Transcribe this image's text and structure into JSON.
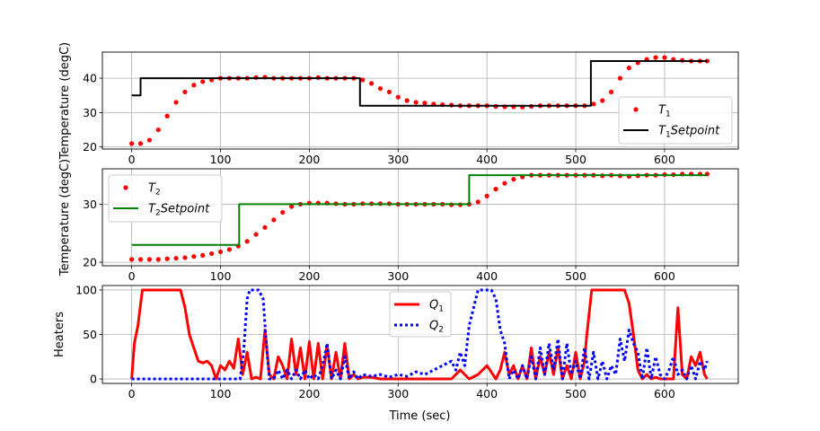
{
  "colors": {
    "red": "#ff0000",
    "black": "#000000",
    "green": "#008000",
    "blue": "#0000ff",
    "grid": "#b0b0b0"
  },
  "chart_data": [
    {
      "type": "line",
      "ylabel": "Temperature (degC)",
      "xlim": [
        -33,
        683
      ],
      "ylim": [
        19.4,
        47.6
      ],
      "xticks": [
        0,
        100,
        200,
        300,
        400,
        500,
        600
      ],
      "yticks": [
        20,
        30,
        40
      ],
      "grid": true,
      "legend_position": "lower-right",
      "series": [
        {
          "name": "T₁",
          "label_main": "T",
          "label_sub": "1",
          "label_rest": "",
          "style": "scatter",
          "color": "#ff0000",
          "x": [
            0,
            10,
            20,
            30,
            40,
            50,
            60,
            70,
            80,
            90,
            100,
            110,
            120,
            130,
            140,
            150,
            160,
            170,
            180,
            190,
            200,
            210,
            220,
            230,
            240,
            250,
            260,
            270,
            280,
            290,
            300,
            310,
            320,
            330,
            340,
            350,
            360,
            370,
            380,
            390,
            400,
            410,
            420,
            430,
            440,
            450,
            460,
            470,
            480,
            490,
            500,
            510,
            520,
            530,
            540,
            550,
            560,
            570,
            580,
            590,
            600,
            610,
            620,
            630,
            640,
            648
          ],
          "y": [
            21,
            21,
            22,
            25,
            29,
            33,
            36,
            38,
            39,
            39.5,
            40,
            40,
            40,
            40,
            40.2,
            40.3,
            40,
            40,
            40,
            40,
            40,
            40.2,
            40,
            40,
            40,
            40,
            39.5,
            38.5,
            37,
            36,
            34.5,
            33.5,
            33,
            32.8,
            32.5,
            32.3,
            32.2,
            32,
            32,
            32,
            32,
            31.8,
            31.7,
            31.7,
            31.6,
            31.8,
            32,
            32,
            32,
            32,
            32,
            32,
            32.5,
            33.5,
            36,
            40,
            43,
            44.5,
            45.5,
            46,
            46,
            45.5,
            45.2,
            45,
            45,
            45
          ]
        },
        {
          "name": "T₁Setpoint",
          "label_main": "T",
          "label_sub": "1",
          "label_rest": "Setpoint",
          "style": "line",
          "color": "#000000",
          "x": [
            0,
            10,
            10,
            257,
            257,
            517,
            517,
            648
          ],
          "y": [
            35,
            35,
            40,
            40,
            32,
            32,
            45,
            45
          ]
        }
      ]
    },
    {
      "type": "line",
      "ylabel": "Temperature (degC)",
      "xlim": [
        -33,
        683
      ],
      "ylim": [
        19.4,
        36.1
      ],
      "xticks": [
        0,
        100,
        200,
        300,
        400,
        500,
        600
      ],
      "yticks": [
        20,
        30
      ],
      "grid": true,
      "legend_position": "upper-left",
      "series": [
        {
          "name": "T₂",
          "label_main": "T",
          "label_sub": "2",
          "label_rest": "",
          "style": "scatter",
          "color": "#ff0000",
          "x": [
            0,
            10,
            20,
            30,
            40,
            50,
            60,
            70,
            80,
            90,
            100,
            110,
            120,
            130,
            140,
            150,
            160,
            170,
            180,
            190,
            200,
            210,
            220,
            230,
            240,
            250,
            260,
            270,
            280,
            290,
            300,
            310,
            320,
            330,
            340,
            350,
            360,
            370,
            380,
            390,
            400,
            410,
            420,
            430,
            440,
            450,
            460,
            470,
            480,
            490,
            500,
            510,
            520,
            530,
            540,
            550,
            560,
            570,
            580,
            590,
            600,
            610,
            620,
            630,
            640,
            648
          ],
          "y": [
            20.5,
            20.5,
            20.5,
            20.5,
            20.6,
            20.7,
            20.8,
            21,
            21.2,
            21.5,
            21.8,
            22.2,
            22.8,
            23.6,
            24.8,
            26,
            27.3,
            28.6,
            29.6,
            30,
            30.2,
            30.2,
            30.2,
            30.1,
            30,
            30,
            30.1,
            30.1,
            30.1,
            30.1,
            30,
            30,
            30,
            30,
            30,
            30,
            29.9,
            29.9,
            30,
            30.4,
            31.4,
            32.6,
            33.6,
            34.3,
            34.7,
            35,
            35,
            35,
            35,
            35,
            35,
            35,
            35,
            34.9,
            35,
            34.9,
            34.8,
            34.9,
            35,
            35,
            35.1,
            35.1,
            35.2,
            35.2,
            35.2,
            35.2
          ]
        },
        {
          "name": "T₂Setpoint",
          "label_main": "T",
          "label_sub": "2",
          "label_rest": "Setpoint",
          "style": "line",
          "color": "#008000",
          "x": [
            0,
            121,
            121,
            380,
            380,
            648
          ],
          "y": [
            23,
            23,
            30,
            30,
            35,
            35
          ]
        }
      ]
    },
    {
      "type": "line",
      "ylabel": "Heaters",
      "xlabel": "Time (sec)",
      "xlim": [
        -33,
        683
      ],
      "ylim": [
        -5,
        105
      ],
      "xticks": [
        0,
        100,
        200,
        300,
        400,
        500,
        600
      ],
      "yticks": [
        0,
        50,
        100
      ],
      "grid": true,
      "legend_position": "upper-center",
      "series": [
        {
          "name": "Q₁",
          "label_main": "Q",
          "label_sub": "1",
          "label_rest": "",
          "style": "thick-line",
          "color": "#ff0000",
          "x": [
            0,
            3,
            7,
            12,
            18,
            25,
            35,
            45,
            55,
            60,
            65,
            70,
            75,
            80,
            85,
            90,
            95,
            100,
            105,
            110,
            115,
            120,
            125,
            130,
            135,
            140,
            145,
            150,
            155,
            160,
            165,
            170,
            175,
            180,
            185,
            190,
            195,
            200,
            205,
            210,
            215,
            220,
            225,
            230,
            235,
            240,
            245,
            250,
            255,
            260,
            270,
            280,
            290,
            300,
            310,
            320,
            330,
            340,
            350,
            360,
            370,
            380,
            390,
            400,
            410,
            415,
            420,
            425,
            430,
            435,
            440,
            445,
            450,
            455,
            460,
            465,
            470,
            475,
            480,
            485,
            490,
            495,
            500,
            505,
            510,
            512,
            518,
            525,
            535,
            545,
            555,
            560,
            565,
            570,
            575,
            580,
            585,
            590,
            595,
            600,
            605,
            610,
            615,
            620,
            625,
            630,
            635,
            640,
            645,
            648
          ],
          "y": [
            0,
            40,
            60,
            100,
            100,
            100,
            100,
            100,
            100,
            80,
            50,
            35,
            20,
            18,
            20,
            15,
            0,
            15,
            10,
            20,
            12,
            45,
            5,
            30,
            0,
            2,
            0,
            55,
            5,
            0,
            25,
            15,
            0,
            45,
            5,
            35,
            0,
            42,
            0,
            40,
            0,
            38,
            0,
            30,
            0,
            40,
            0,
            5,
            0,
            2,
            2,
            0,
            0,
            0,
            0,
            0,
            0,
            0,
            0,
            0,
            10,
            0,
            5,
            15,
            0,
            10,
            30,
            5,
            15,
            0,
            15,
            0,
            35,
            0,
            25,
            5,
            30,
            5,
            35,
            0,
            15,
            0,
            30,
            0,
            20,
            45,
            100,
            100,
            100,
            100,
            100,
            85,
            50,
            10,
            0,
            5,
            0,
            2,
            0,
            0,
            0,
            0,
            80,
            5,
            0,
            25,
            15,
            30,
            5,
            0
          ]
        },
        {
          "name": "Q₂",
          "label_main": "Q",
          "label_sub": "2",
          "label_rest": "",
          "style": "dotted",
          "color": "#0000ff",
          "x": [
            0,
            20,
            40,
            60,
            80,
            100,
            110,
            118,
            122,
            126,
            130,
            133,
            138,
            143,
            148,
            152,
            155,
            160,
            165,
            170,
            175,
            180,
            185,
            190,
            195,
            200,
            205,
            210,
            215,
            220,
            225,
            230,
            235,
            240,
            245,
            250,
            255,
            260,
            270,
            280,
            290,
            300,
            310,
            320,
            330,
            340,
            350,
            360,
            365,
            370,
            375,
            380,
            385,
            390,
            395,
            400,
            405,
            410,
            415,
            420,
            425,
            430,
            435,
            440,
            445,
            450,
            455,
            460,
            465,
            470,
            475,
            480,
            485,
            490,
            495,
            500,
            505,
            510,
            515,
            520,
            525,
            530,
            535,
            540,
            545,
            550,
            555,
            560,
            565,
            570,
            575,
            580,
            585,
            590,
            595,
            600,
            605,
            610,
            615,
            620,
            625,
            630,
            635,
            640,
            645,
            648
          ],
          "y": [
            0,
            0,
            0,
            0,
            0,
            0,
            0,
            0,
            0,
            30,
            90,
            100,
            100,
            100,
            90,
            35,
            0,
            0,
            10,
            0,
            10,
            0,
            10,
            0,
            10,
            0,
            5,
            0,
            15,
            40,
            0,
            10,
            0,
            25,
            0,
            8,
            0,
            5,
            3,
            5,
            2,
            5,
            3,
            8,
            5,
            10,
            15,
            20,
            10,
            30,
            15,
            60,
            80,
            100,
            100,
            100,
            100,
            90,
            55,
            40,
            0,
            10,
            0,
            15,
            0,
            25,
            0,
            35,
            5,
            40,
            10,
            45,
            0,
            40,
            5,
            20,
            0,
            35,
            0,
            30,
            0,
            20,
            0,
            15,
            5,
            45,
            20,
            55,
            40,
            30,
            0,
            35,
            0,
            25,
            5,
            0,
            10,
            25,
            5,
            10,
            0,
            15,
            0,
            20,
            10,
            20
          ]
        }
      ]
    }
  ]
}
